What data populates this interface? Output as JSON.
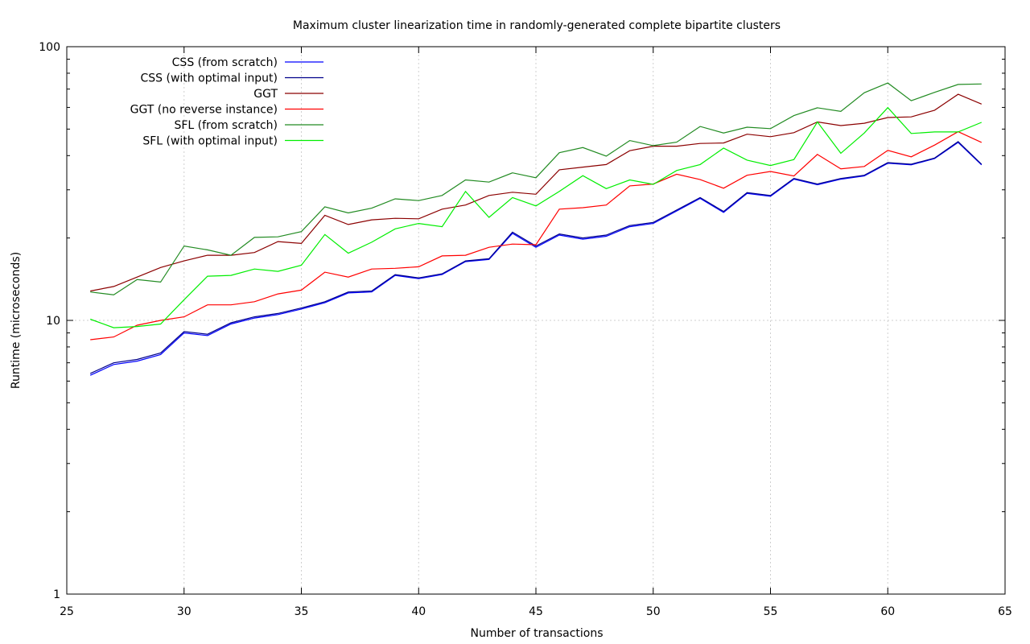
{
  "chart_data": {
    "type": "line",
    "title": "Maximum cluster linearization time in randomly-generated complete bipartite clusters",
    "xlabel": "Number of transactions",
    "ylabel": "Runtime (microseconds)",
    "xlim": [
      25,
      65
    ],
    "ylim": [
      1,
      100
    ],
    "yscale": "log",
    "grid": true,
    "legend_position": "top-left",
    "x_ticks": [
      25,
      30,
      35,
      40,
      45,
      50,
      55,
      60,
      65
    ],
    "y_ticks": [
      1,
      10,
      100
    ],
    "x": [
      26,
      27,
      28,
      29,
      30,
      31,
      32,
      33,
      34,
      35,
      36,
      37,
      38,
      39,
      40,
      41,
      42,
      43,
      44,
      45,
      46,
      47,
      48,
      49,
      50,
      51,
      52,
      53,
      54,
      55,
      56,
      57,
      58,
      59,
      60,
      61,
      62,
      63,
      64
    ],
    "series": [
      {
        "name": "CSS (from scratch)",
        "color": "#0000ff",
        "values": [
          6.3,
          6.9,
          7.1,
          7.5,
          9.0,
          8.8,
          9.7,
          10.2,
          10.5,
          11.0,
          11.6,
          12.6,
          12.7,
          14.6,
          14.2,
          14.7,
          16.4,
          16.7,
          20.8,
          18.5,
          20.5,
          19.8,
          20.3,
          22.0,
          22.6,
          25.1,
          27.9,
          24.8,
          29.1,
          28.4,
          32.8,
          31.3,
          32.8,
          33.7,
          37.5,
          37.0,
          39.0,
          44.7,
          37.0
        ]
      },
      {
        "name": "CSS (with optimal input)",
        "color": "#00008b",
        "values": [
          6.4,
          7.0,
          7.2,
          7.6,
          9.1,
          8.9,
          9.8,
          10.3,
          10.6,
          11.1,
          11.7,
          12.7,
          12.8,
          14.7,
          14.3,
          14.8,
          16.5,
          16.8,
          21.0,
          18.7,
          20.7,
          20.0,
          20.5,
          22.2,
          22.8,
          25.3,
          28.1,
          25.0,
          29.3,
          28.6,
          33.0,
          31.5,
          33.0,
          33.9,
          37.7,
          37.2,
          39.2,
          45.0,
          37.2
        ]
      },
      {
        "name": "GGT",
        "color": "#8b0000",
        "values": [
          12.8,
          13.3,
          14.4,
          15.6,
          16.5,
          17.3,
          17.3,
          17.7,
          19.4,
          19.1,
          24.2,
          22.4,
          23.3,
          23.6,
          23.5,
          25.5,
          26.4,
          28.6,
          29.4,
          28.9,
          35.5,
          36.3,
          37.1,
          41.7,
          43.3,
          43.3,
          44.3,
          44.5,
          47.9,
          46.9,
          48.5,
          53.1,
          51.5,
          52.5,
          55.1,
          55.4,
          58.6,
          67.0,
          61.7
        ]
      },
      {
        "name": "GGT (no reverse instance)",
        "color": "#ff0000",
        "values": [
          8.5,
          8.7,
          9.6,
          10.0,
          10.3,
          11.4,
          11.4,
          11.7,
          12.5,
          12.9,
          15.0,
          14.4,
          15.4,
          15.5,
          15.7,
          17.2,
          17.3,
          18.5,
          19.0,
          18.9,
          25.5,
          25.8,
          26.4,
          31.0,
          31.5,
          34.2,
          32.7,
          30.4,
          33.9,
          35.0,
          33.7,
          40.4,
          35.8,
          36.5,
          41.8,
          39.6,
          43.7,
          48.9,
          44.7
        ]
      },
      {
        "name": "SFL (from scratch)",
        "color": "#228b22",
        "values": [
          12.7,
          12.4,
          14.1,
          13.8,
          18.7,
          18.1,
          17.3,
          20.1,
          20.2,
          21.1,
          26.0,
          24.7,
          25.7,
          27.8,
          27.4,
          28.6,
          32.6,
          32.0,
          34.6,
          33.2,
          41.0,
          42.8,
          39.8,
          45.4,
          43.5,
          44.8,
          51.1,
          48.4,
          50.8,
          50.2,
          56.0,
          59.8,
          58.0,
          67.9,
          73.7,
          63.5,
          68.1,
          72.8,
          73.1
        ]
      },
      {
        "name": "SFL (with optimal input)",
        "color": "#00ee00",
        "values": [
          10.1,
          9.4,
          9.5,
          9.7,
          11.9,
          14.5,
          14.6,
          15.4,
          15.1,
          15.9,
          20.6,
          17.6,
          19.3,
          21.6,
          22.6,
          22.0,
          29.6,
          23.8,
          28.1,
          26.2,
          29.6,
          33.8,
          30.3,
          32.6,
          31.4,
          35.3,
          37.1,
          42.6,
          38.5,
          36.8,
          38.7,
          53.1,
          40.8,
          48.4,
          59.9,
          48.2,
          48.8,
          48.8,
          52.9
        ]
      }
    ]
  }
}
